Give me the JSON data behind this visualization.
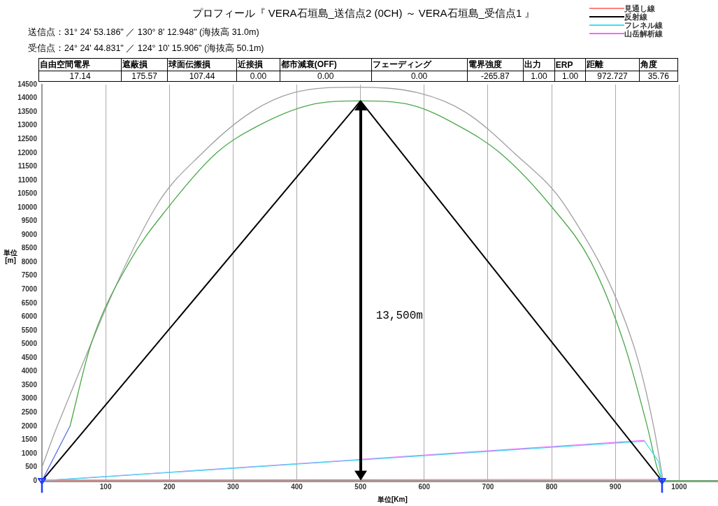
{
  "chart_data": {
    "type": "line",
    "title": "プロフィール『 VERA石垣島_送信点2 (0CH) ～ VERA石垣島_受信点1 』",
    "subtitle": "送信点：31° 24' 53.186\" ／ 130° 8' 12.948\" (海抜高 31.0m)",
    "annotations": [
      "受信点：24° 24' 44.831\" ／ 124° 10' 15.906\" (海抜高 50.1m)",
      "自由空間電界",
      "遮蔽損",
      "球面伝搬損",
      "近接損",
      "都市減衰(OFF)",
      "フェーディング",
      "電界強度",
      "出力",
      "ERP",
      "距離",
      "角度",
      "17.14",
      "175.57",
      "107.44",
      "0.00",
      "0.00",
      "0.00",
      "-265.87",
      "1.00",
      "1.00",
      "972.727",
      "35.76",
      "13,500m"
    ],
    "xlabel": "単位[Km]",
    "ylabel": "単位[m]",
    "xlim": [
      0,
      1060
    ],
    "xticks": [
      {
        "value": 0,
        "label": null
      },
      100,
      200,
      300,
      400,
      500,
      600,
      700,
      800,
      900,
      1000
    ],
    "ylim": [
      0,
      14500
    ],
    "yticks": [
      0,
      500,
      1000,
      1500,
      2000,
      2500,
      3000,
      3500,
      4000,
      4500,
      5000,
      5500,
      6000,
      6500,
      7000,
      7500,
      8000,
      8500,
      9000,
      9500,
      10000,
      10500,
      11000,
      11500,
      12000,
      12500,
      13000,
      13500,
      14000,
      14500
    ],
    "grid": "x",
    "legend": "top right",
    "line_style": "solid",
    "series": [
      {
        "name": "見通し線",
        "color": "#ff8080",
        "x": [
          0,
          973
        ],
        "values": [
          30,
          50
        ]
      },
      {
        "name": "反射線",
        "color": "#000000",
        "x": [
          0,
          500,
          973
        ],
        "values": [
          0,
          13900,
          0
        ]
      },
      {
        "name": "フレネル線",
        "color": "#40e0f0",
        "x": [
          0,
          946,
          968,
          973
        ],
        "values": [
          0,
          1450,
          700,
          0
        ]
      },
      {
        "name": "山岳解析線",
        "color": "#ff60ff",
        "x": [
          0,
          946
        ],
        "values": [
          0,
          1480
        ]
      },
      {
        "color": "#5b6ee8",
        "x": [
          0,
          44
        ],
        "values": [
          0,
          2000
        ]
      },
      {
        "color": "#4aa84a",
        "x": [
          44,
          77,
          137,
          198,
          274,
          340,
          420,
          500,
          580,
          653,
          719,
          801,
          862,
          914,
          950,
          968,
          980,
          1060
        ],
        "values": [
          2000,
          5000,
          8000,
          10000,
          12000,
          13000,
          13750,
          13900,
          13750,
          13000,
          12000,
          10000,
          8000,
          5000,
          2000,
          300,
          0,
          0
        ]
      },
      {
        "color": "#a0a0a0",
        "x": [
          0,
          24,
          178,
          252,
          329,
          395,
          490,
          590,
          664,
          741,
          823,
          928,
          960,
          975
        ],
        "values": [
          500,
          2000,
          10000,
          12000,
          13500,
          14200,
          14400,
          14200,
          13500,
          12000,
          10000,
          5000,
          2000,
          0
        ]
      }
    ]
  }
}
